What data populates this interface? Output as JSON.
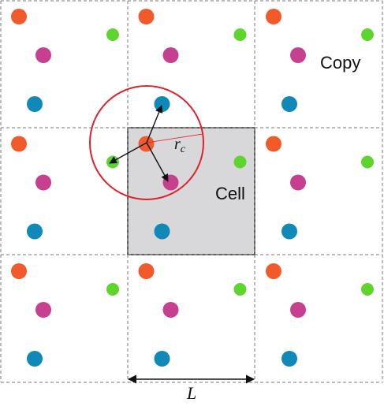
{
  "labels": {
    "copy": "Copy",
    "cell": "Cell",
    "cutoff_symbol": "r",
    "cutoff_subscript": "c",
    "length": "L"
  },
  "colors": {
    "orange": "#f25a2a",
    "green": "#5fd32e",
    "magenta": "#c6408f",
    "blue": "#1089b8",
    "cell_fill": "#d8d8da",
    "cutoff_circle": "#e0202a",
    "arrow": "#111111",
    "grid": "#777777"
  },
  "particle_species": [
    "orange",
    "green",
    "magenta",
    "blue"
  ]
}
